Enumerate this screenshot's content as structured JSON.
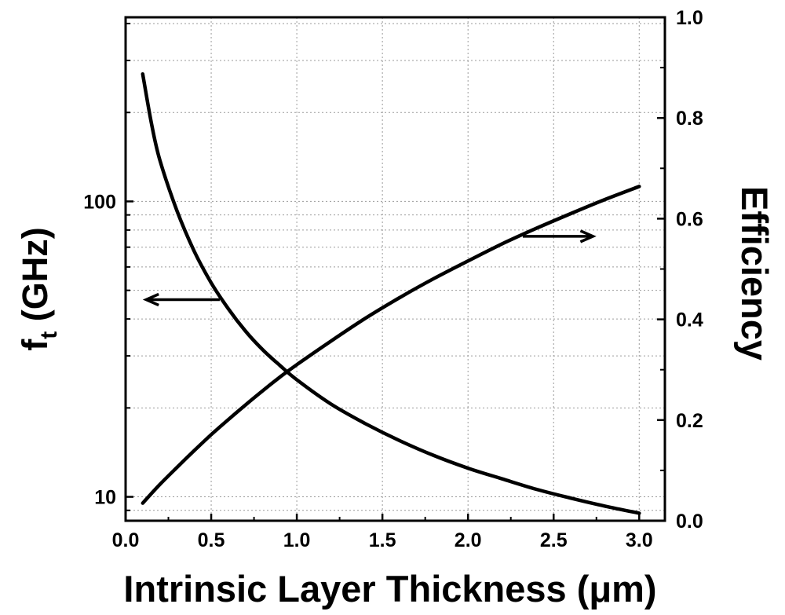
{
  "chart_data": {
    "type": "line",
    "xlabel": "Intrinsic Layer Thickness (μm)",
    "ylabel_left": "f",
    "ylabel_left_sub": "t",
    "ylabel_left_unit": " (GHz)",
    "ylabel_right": "Efficiency",
    "xlim": [
      0.0,
      3.15
    ],
    "ylim_left": [
      8.3,
      420
    ],
    "ylim_left_scale": "log",
    "ylim_right": [
      0.0,
      1.0
    ],
    "x_ticks": [
      "0.0",
      "0.5",
      "1.0",
      "1.5",
      "2.0",
      "2.5",
      "3.0"
    ],
    "y_left_ticks": [
      "10",
      "100"
    ],
    "y_right_ticks": [
      "0.0",
      "0.2",
      "0.4",
      "0.6",
      "0.8",
      "1.0"
    ],
    "grid": true,
    "series": [
      {
        "axis": "left",
        "x": [
          0.1,
          0.15,
          0.2,
          0.3,
          0.4,
          0.5,
          0.6,
          0.7,
          0.8,
          0.9,
          1.0,
          1.2,
          1.4,
          1.6,
          1.8,
          2.0,
          2.2,
          2.4,
          2.6,
          2.8,
          3.0
        ],
        "values": [
          270,
          185,
          138,
          93,
          68,
          53,
          43.3,
          36.4,
          31.5,
          27.9,
          24.9,
          20.6,
          17.7,
          15.5,
          13.8,
          12.5,
          11.5,
          10.6,
          9.9,
          9.3,
          8.8
        ]
      },
      {
        "axis": "right",
        "x": [
          0.1,
          0.2,
          0.3,
          0.4,
          0.5,
          0.6,
          0.7,
          0.8,
          0.9,
          1.0,
          1.2,
          1.4,
          1.6,
          1.8,
          2.0,
          2.2,
          2.4,
          2.6,
          2.8,
          3.0
        ],
        "values": [
          0.035,
          0.072,
          0.106,
          0.139,
          0.171,
          0.201,
          0.23,
          0.258,
          0.285,
          0.31,
          0.357,
          0.402,
          0.443,
          0.481,
          0.516,
          0.55,
          0.581,
          0.61,
          0.638,
          0.664
        ]
      }
    ],
    "annotations": [
      {
        "direction": "left",
        "points_to_axis": "left",
        "x_from": 0.55,
        "x_to": 0.12,
        "y_left": 46.5
      },
      {
        "direction": "right",
        "points_to_axis": "right",
        "x_from": 2.32,
        "x_to": 2.73,
        "y_right": 0.565
      }
    ]
  }
}
